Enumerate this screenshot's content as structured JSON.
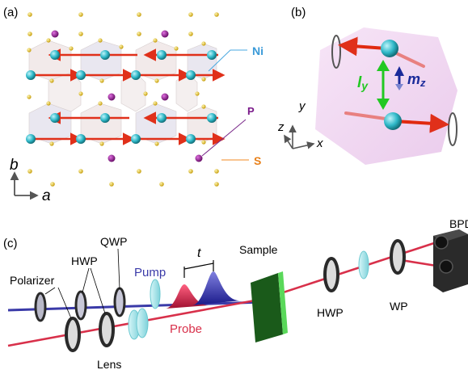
{
  "panel_a": {
    "tag": "(a)",
    "label_ni": "Ni",
    "label_p": "P",
    "label_s": "S",
    "axis_b": "b",
    "axis_a": "a",
    "colors": {
      "ni": "#2fb8c8",
      "p": "#8b1a8b",
      "s": "#e0c020",
      "arrow": "#e0301a",
      "octa": "#d9c7c7",
      "ni_line": "#4aa8e0",
      "p_line": "#7a2a8a",
      "s_line": "#f08a20"
    }
  },
  "panel_b": {
    "tag": "(b)",
    "label_ly_main": "l",
    "label_ly_sub": "y",
    "label_mz_main": "m",
    "label_mz_sub": "z",
    "axis_x": "x",
    "axis_y": "y",
    "axis_z": "z",
    "colors": {
      "plane": "#efd3ef",
      "ly": "#22c822",
      "mz": "#1a2a9a",
      "spin": "#e02a10"
    }
  },
  "panel_c": {
    "tag": "(c)",
    "polarizer": "Polarizer",
    "hwp_left": "HWP",
    "qwp": "QWP",
    "pump": "Pump",
    "delay": "t",
    "sample": "Sample",
    "probe": "Probe",
    "lens": "Lens",
    "hwp_right": "HWP",
    "wp": "WP",
    "bpd": "BPD",
    "colors": {
      "pump": "#3a3aa8",
      "probe": "#d8304a",
      "sample": "#2a8a2a",
      "sample_edge": "#5ad85a",
      "optic_ring": "#2a2a2a",
      "glass": "#a8e4e8"
    }
  }
}
